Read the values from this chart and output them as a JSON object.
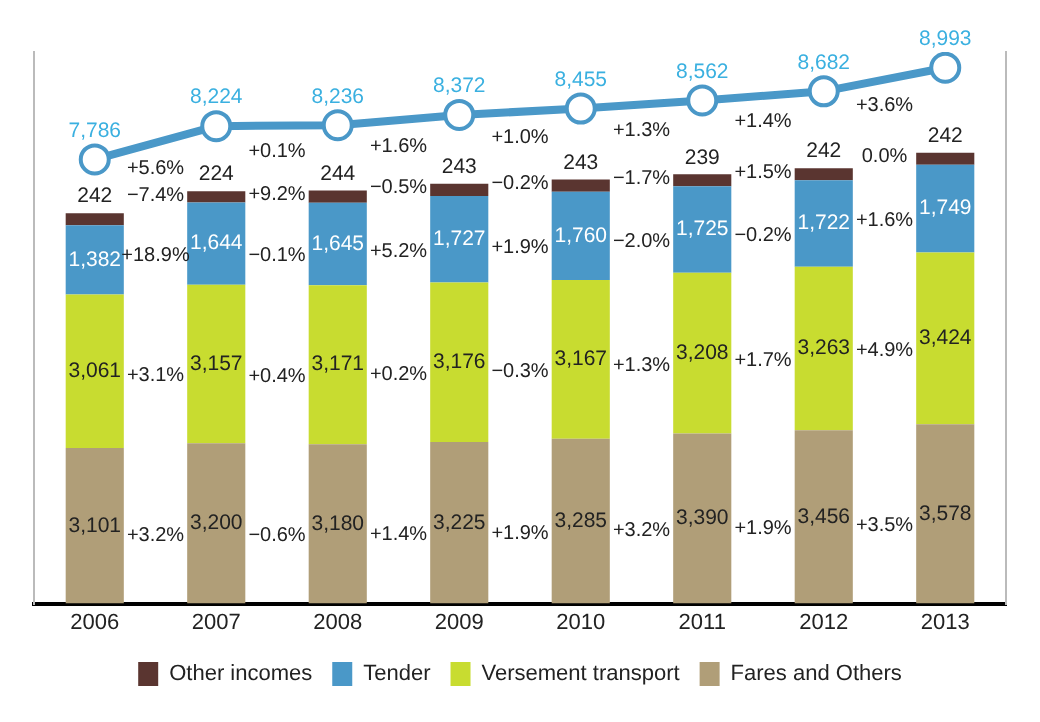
{
  "chart_data": {
    "type": "bar",
    "stacked": true,
    "categories": [
      "2006",
      "2007",
      "2008",
      "2009",
      "2010",
      "2011",
      "2012",
      "2013"
    ],
    "series": [
      {
        "name": "Fares and Others",
        "color": "#b09e78",
        "values": [
          3101,
          3200,
          3180,
          3225,
          3285,
          3390,
          3456,
          3578
        ],
        "value_labels": [
          "3,101",
          "3,200",
          "3,180",
          "3,225",
          "3,285",
          "3,390",
          "3,456",
          "3,578"
        ]
      },
      {
        "name": "Versement transport",
        "color": "#c8dc30",
        "values": [
          3061,
          3157,
          3171,
          3176,
          3167,
          3208,
          3263,
          3424
        ],
        "value_labels": [
          "3,061",
          "3,157",
          "3,171",
          "3,176",
          "3,167",
          "3,208",
          "3,263",
          "3,424"
        ]
      },
      {
        "name": "Tender",
        "color": "#4a98c8",
        "values": [
          1382,
          1644,
          1645,
          1727,
          1760,
          1725,
          1722,
          1749
        ],
        "value_labels": [
          "1,382",
          "1,644",
          "1,645",
          "1,727",
          "1,760",
          "1,725",
          "1,722",
          "1,749"
        ]
      },
      {
        "name": "Other incomes",
        "color": "#5a3530",
        "values": [
          242,
          224,
          244,
          243,
          243,
          239,
          242,
          242
        ],
        "value_labels": [
          "242",
          "224",
          "244",
          "243",
          "243",
          "239",
          "242",
          "242"
        ]
      },
      {
        "type": "line",
        "axis": "y2",
        "color": "#4a98c8",
        "values": [
          7786,
          8224,
          8236,
          8372,
          8455,
          8562,
          8682,
          8993
        ],
        "value_labels": [
          "7,786",
          "8,224",
          "8,236",
          "8,372",
          "8,455",
          "8,562",
          "8,682",
          "8,993"
        ]
      }
    ],
    "ylim": [
      0,
      11000
    ],
    "y2lim": [
      1940,
      9200
    ],
    "tick_labels": "x",
    "marker": "circle",
    "line_style": "solid",
    "legend": "bottom",
    "annotations": [
      "+3.2%",
      "−0.6%",
      "+1.4%",
      "+1.9%",
      "+3.2%",
      "+1.9%",
      "+3.5%",
      "+3.1%",
      "+0.4%",
      "+0.2%",
      "−0.3%",
      "+1.3%",
      "+1.7%",
      "+4.9%",
      "+18.9%",
      "−0.1%",
      "+5.2%",
      "+1.9%",
      "−2.0%",
      "−0.2%",
      "+1.6%",
      "−7.4%",
      "+9.2%",
      "−0.5%",
      "−0.2%",
      "−1.7%",
      "+1.5%",
      "0.0%",
      "+5.6%",
      "+0.1%",
      "+1.6%",
      "+1.0%",
      "+1.3%",
      "+1.4%",
      "+3.6%"
    ]
  }
}
